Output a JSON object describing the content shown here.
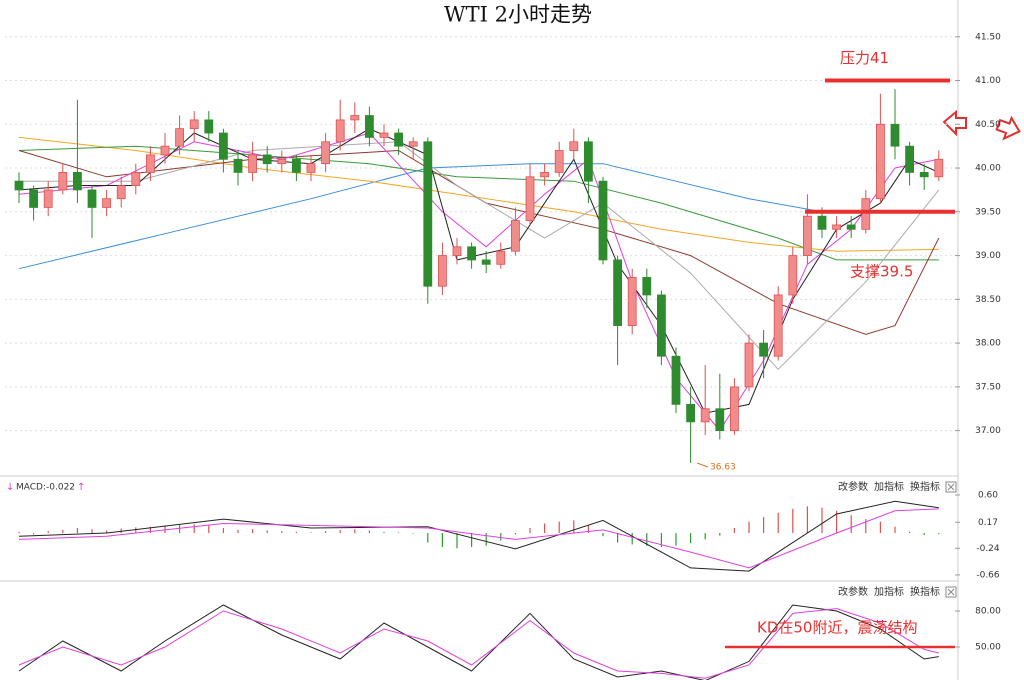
{
  "chart_data": [
    {
      "type": "candlestick",
      "title": "WTI 2小时走势",
      "up_color": "#f08c8c",
      "down_color": "#2e8b2e",
      "grid": true,
      "ylim": [
        36.55,
        41.92
      ],
      "yticks": [
        {
          "value": 41.5,
          "label": "41.50"
        },
        {
          "value": 41,
          "label": "41.00"
        },
        {
          "value": 40.5,
          "label": "40.50"
        },
        {
          "value": 40,
          "label": "40.00"
        },
        {
          "value": 39.5,
          "label": "39.50"
        },
        {
          "value": 39,
          "label": "39.00"
        },
        {
          "value": 38.5,
          "label": "38.50"
        },
        {
          "value": 38,
          "label": "38.00"
        },
        {
          "value": 37.5,
          "label": "37.50"
        },
        {
          "value": 37,
          "label": "37.00"
        }
      ],
      "candles": [
        {
          "o": 39.85,
          "h": 39.95,
          "l": 39.6,
          "c": 39.75
        },
        {
          "o": 39.75,
          "h": 39.8,
          "l": 39.4,
          "c": 39.55
        },
        {
          "o": 39.55,
          "h": 39.85,
          "l": 39.45,
          "c": 39.75
        },
        {
          "o": 39.75,
          "h": 40.05,
          "l": 39.7,
          "c": 39.95
        },
        {
          "o": 39.95,
          "h": 40.78,
          "l": 39.6,
          "c": 39.75
        },
        {
          "o": 39.75,
          "h": 39.8,
          "l": 39.2,
          "c": 39.55
        },
        {
          "o": 39.55,
          "h": 39.75,
          "l": 39.45,
          "c": 39.65
        },
        {
          "o": 39.65,
          "h": 39.9,
          "l": 39.55,
          "c": 39.8
        },
        {
          "o": 39.8,
          "h": 40.05,
          "l": 39.7,
          "c": 39.95
        },
        {
          "o": 39.95,
          "h": 40.25,
          "l": 39.85,
          "c": 40.15
        },
        {
          "o": 40.15,
          "h": 40.4,
          "l": 40.05,
          "c": 40.25
        },
        {
          "o": 40.25,
          "h": 40.6,
          "l": 40.15,
          "c": 40.45
        },
        {
          "o": 40.45,
          "h": 40.65,
          "l": 40.3,
          "c": 40.55
        },
        {
          "o": 40.55,
          "h": 40.65,
          "l": 40.3,
          "c": 40.4
        },
        {
          "o": 40.4,
          "h": 40.45,
          "l": 39.95,
          "c": 40.1
        },
        {
          "o": 40.1,
          "h": 40.2,
          "l": 39.8,
          "c": 39.95
        },
        {
          "o": 39.95,
          "h": 40.3,
          "l": 39.85,
          "c": 40.15
        },
        {
          "o": 40.15,
          "h": 40.25,
          "l": 39.95,
          "c": 40.05
        },
        {
          "o": 40.05,
          "h": 40.2,
          "l": 39.95,
          "c": 40.1
        },
        {
          "o": 40.1,
          "h": 40.15,
          "l": 39.85,
          "c": 39.95
        },
        {
          "o": 39.95,
          "h": 40.15,
          "l": 39.85,
          "c": 40.05
        },
        {
          "o": 40.05,
          "h": 40.4,
          "l": 39.95,
          "c": 40.3
        },
        {
          "o": 40.3,
          "h": 40.78,
          "l": 40.2,
          "c": 40.55
        },
        {
          "o": 40.55,
          "h": 40.75,
          "l": 40.4,
          "c": 40.6
        },
        {
          "o": 40.6,
          "h": 40.7,
          "l": 40.25,
          "c": 40.35
        },
        {
          "o": 40.35,
          "h": 40.5,
          "l": 40.25,
          "c": 40.4
        },
        {
          "o": 40.4,
          "h": 40.45,
          "l": 40.15,
          "c": 40.25
        },
        {
          "o": 40.25,
          "h": 40.35,
          "l": 40.1,
          "c": 40.3
        },
        {
          "o": 40.3,
          "h": 40.35,
          "l": 38.45,
          "c": 38.65
        },
        {
          "o": 38.65,
          "h": 39.15,
          "l": 38.55,
          "c": 39.0
        },
        {
          "o": 39.0,
          "h": 39.2,
          "l": 38.9,
          "c": 39.1
        },
        {
          "o": 39.1,
          "h": 39.15,
          "l": 38.85,
          "c": 38.95
        },
        {
          "o": 38.95,
          "h": 39.05,
          "l": 38.8,
          "c": 38.9
        },
        {
          "o": 38.9,
          "h": 39.15,
          "l": 38.85,
          "c": 39.05
        },
        {
          "o": 39.05,
          "h": 39.55,
          "l": 39.0,
          "c": 39.4
        },
        {
          "o": 39.4,
          "h": 40.05,
          "l": 39.35,
          "c": 39.9
        },
        {
          "o": 39.9,
          "h": 40.05,
          "l": 39.8,
          "c": 39.95
        },
        {
          "o": 39.95,
          "h": 40.3,
          "l": 39.9,
          "c": 40.2
        },
        {
          "o": 40.2,
          "h": 40.45,
          "l": 40.1,
          "c": 40.3
        },
        {
          "o": 40.3,
          "h": 40.35,
          "l": 39.6,
          "c": 39.85
        },
        {
          "o": 39.85,
          "h": 39.9,
          "l": 38.9,
          "c": 38.95
        },
        {
          "o": 38.95,
          "h": 39.0,
          "l": 37.75,
          "c": 38.2
        },
        {
          "o": 38.2,
          "h": 38.85,
          "l": 38.1,
          "c": 38.75
        },
        {
          "o": 38.75,
          "h": 38.85,
          "l": 38.4,
          "c": 38.55
        },
        {
          "o": 38.55,
          "h": 38.6,
          "l": 37.75,
          "c": 37.85
        },
        {
          "o": 37.85,
          "h": 37.95,
          "l": 37.2,
          "c": 37.3
        },
        {
          "o": 37.3,
          "h": 37.5,
          "l": 36.63,
          "c": 37.1
        },
        {
          "o": 37.1,
          "h": 37.75,
          "l": 36.95,
          "c": 37.25
        },
        {
          "o": 37.25,
          "h": 37.65,
          "l": 36.9,
          "c": 37.0
        },
        {
          "o": 37.0,
          "h": 37.6,
          "l": 36.95,
          "c": 37.5
        },
        {
          "o": 37.5,
          "h": 38.1,
          "l": 37.45,
          "c": 38.0
        },
        {
          "o": 38.0,
          "h": 38.15,
          "l": 37.6,
          "c": 37.85
        },
        {
          "o": 37.85,
          "h": 38.65,
          "l": 37.8,
          "c": 38.55
        },
        {
          "o": 38.55,
          "h": 39.1,
          "l": 38.45,
          "c": 39.0
        },
        {
          "o": 39.0,
          "h": 39.7,
          "l": 38.9,
          "c": 39.45
        },
        {
          "o": 39.45,
          "h": 39.55,
          "l": 39.2,
          "c": 39.3
        },
        {
          "o": 39.3,
          "h": 39.45,
          "l": 39.2,
          "c": 39.35
        },
        {
          "o": 39.35,
          "h": 39.45,
          "l": 39.2,
          "c": 39.3
        },
        {
          "o": 39.3,
          "h": 39.75,
          "l": 39.25,
          "c": 39.65
        },
        {
          "o": 39.65,
          "h": 40.85,
          "l": 39.6,
          "c": 40.5
        },
        {
          "o": 40.5,
          "h": 40.9,
          "l": 40.1,
          "c": 40.25
        },
        {
          "o": 40.25,
          "h": 40.3,
          "l": 39.8,
          "c": 39.95
        },
        {
          "o": 39.95,
          "h": 40.05,
          "l": 39.75,
          "c": 39.9
        },
        {
          "o": 39.9,
          "h": 40.2,
          "l": 39.85,
          "c": 40.1
        }
      ],
      "lines": [
        {
          "color": "#3b8ed8",
          "x": [
            0,
            10,
            20,
            28,
            35,
            40,
            45,
            50,
            55,
            63
          ],
          "values": [
            38.85,
            39.25,
            39.65,
            40.0,
            40.05,
            40.05,
            39.85,
            39.65,
            39.5,
            39.5
          ]
        },
        {
          "color": "#f5a623",
          "x": [
            0,
            8,
            16,
            24,
            30,
            38,
            44,
            50,
            56,
            63
          ],
          "values": [
            40.35,
            40.2,
            40.0,
            39.85,
            39.7,
            39.5,
            39.3,
            39.15,
            39.05,
            39.07
          ]
        },
        {
          "color": "#3a9a3a",
          "x": [
            0,
            8,
            16,
            24,
            30,
            38,
            44,
            52,
            56,
            63
          ],
          "values": [
            40.2,
            40.25,
            40.15,
            40.05,
            39.9,
            39.85,
            39.6,
            39.2,
            38.95,
            38.95
          ]
        },
        {
          "color": "#8b3a2a",
          "x": [
            0,
            6,
            16,
            26,
            32,
            40,
            46,
            52,
            58,
            60,
            63
          ],
          "values": [
            40.2,
            39.9,
            40.1,
            40.2,
            39.6,
            39.3,
            39.0,
            38.45,
            38.1,
            38.2,
            39.2
          ]
        },
        {
          "color": "#aaaaaa",
          "x": [
            0,
            8,
            16,
            26,
            30,
            36,
            40,
            46,
            52,
            58,
            63
          ],
          "values": [
            39.85,
            39.85,
            40.2,
            40.3,
            39.8,
            39.2,
            39.6,
            38.8,
            37.7,
            38.7,
            39.75
          ]
        },
        {
          "color": "#e040e0",
          "x": [
            0,
            6,
            12,
            18,
            24,
            29,
            32,
            36,
            39,
            42,
            45,
            48,
            51,
            54,
            57,
            60,
            63
          ],
          "values": [
            39.7,
            39.8,
            40.3,
            40.1,
            40.4,
            39.5,
            39.1,
            39.7,
            40.1,
            38.7,
            37.6,
            37.0,
            37.8,
            38.9,
            39.3,
            40.0,
            40.1
          ]
        },
        {
          "color": "#222222",
          "x": [
            0,
            4,
            8,
            12,
            16,
            20,
            24,
            28,
            30,
            34,
            38,
            41,
            44,
            47,
            50,
            53,
            56,
            59,
            61,
            63
          ],
          "values": [
            39.75,
            39.8,
            39.8,
            40.4,
            40.1,
            40.05,
            40.45,
            40.15,
            38.95,
            39.1,
            40.1,
            38.9,
            38.2,
            37.2,
            37.3,
            38.5,
            39.3,
            39.6,
            40.1,
            39.95
          ]
        }
      ],
      "levels": [
        {
          "label": "压力41",
          "value": 41,
          "color": "#e83030"
        },
        {
          "label": "支撑39.5",
          "value": 39.5,
          "color": "#e83030"
        }
      ],
      "low_label": 36.63
    },
    {
      "type": "macd",
      "label": "MACD:-0.022",
      "buttons": [
        "改参数",
        "加指标",
        "换指标"
      ],
      "up_color": "#e05050",
      "down_color": "#2e9a2e",
      "ylim": [
        -0.74,
        0.836
      ],
      "yticks": [
        {
          "value": 0.6,
          "label": "0.60"
        },
        0.17,
        -0.24,
        -0.66
      ],
      "values": [
        0.02,
        -0.02,
        0.03,
        0.05,
        0.08,
        0.06,
        0.04,
        0.07,
        0.09,
        0.1,
        0.12,
        0.13,
        0.14,
        0.12,
        0.08,
        0.05,
        0.06,
        0.04,
        0.03,
        0.02,
        0.01,
        0.03,
        0.05,
        0.06,
        0.04,
        0.02,
        0.01,
        -0.01,
        -0.15,
        -0.22,
        -0.24,
        -0.22,
        -0.2,
        -0.12,
        -0.02,
        0.08,
        0.15,
        0.18,
        0.2,
        0.12,
        -0.05,
        -0.15,
        -0.18,
        -0.2,
        -0.22,
        -0.2,
        -0.16,
        -0.1,
        -0.04,
        0.08,
        0.18,
        0.25,
        0.32,
        0.38,
        0.42,
        0.4,
        0.35,
        0.28,
        0.22,
        0.18,
        0.1,
        0.02,
        -0.03,
        -0.02
      ],
      "lines": [
        {
          "color": "#222222",
          "x": [
            0,
            6,
            14,
            20,
            28,
            34,
            40,
            46,
            50,
            56,
            60,
            63
          ],
          "values": [
            -0.05,
            0.0,
            0.22,
            0.08,
            0.1,
            -0.25,
            0.2,
            -0.55,
            -0.6,
            0.3,
            0.5,
            0.4
          ]
        },
        {
          "color": "#e040e0",
          "x": [
            0,
            6,
            14,
            20,
            28,
            34,
            40,
            46,
            50,
            56,
            60,
            63
          ],
          "values": [
            -0.1,
            -0.05,
            0.15,
            0.12,
            0.08,
            -0.1,
            0.05,
            -0.3,
            -0.55,
            0.0,
            0.35,
            0.38
          ]
        }
      ]
    },
    {
      "type": "kd",
      "buttons": [
        "改参数",
        "加指标",
        "换指标"
      ],
      "ylim": [
        22.5,
        101.7
      ],
      "yticks": [
        {
          "value": 80,
          "label": "80.00"
        },
        {
          "value": 50,
          "label": "50.00"
        }
      ],
      "lines": [
        {
          "color": "#222222",
          "x": [
            0,
            3,
            7,
            10,
            14,
            18,
            22,
            25,
            28,
            31,
            35,
            38,
            41,
            44,
            47,
            50,
            53,
            56,
            59,
            62,
            63
          ],
          "values": [
            30,
            55,
            30,
            55,
            85,
            60,
            40,
            70,
            50,
            30,
            78,
            40,
            25,
            30,
            22,
            38,
            85,
            80,
            65,
            40,
            42
          ]
        },
        {
          "color": "#e040e0",
          "x": [
            0,
            3,
            7,
            10,
            14,
            18,
            22,
            25,
            28,
            31,
            35,
            38,
            41,
            44,
            47,
            50,
            53,
            56,
            59,
            62,
            63
          ],
          "values": [
            35,
            50,
            35,
            50,
            80,
            65,
            45,
            65,
            55,
            35,
            72,
            45,
            30,
            28,
            24,
            35,
            78,
            82,
            70,
            48,
            45
          ]
        }
      ],
      "level": {
        "label": "KD在50附近，震荡结构",
        "value": 50,
        "color": "#e83030"
      }
    }
  ]
}
